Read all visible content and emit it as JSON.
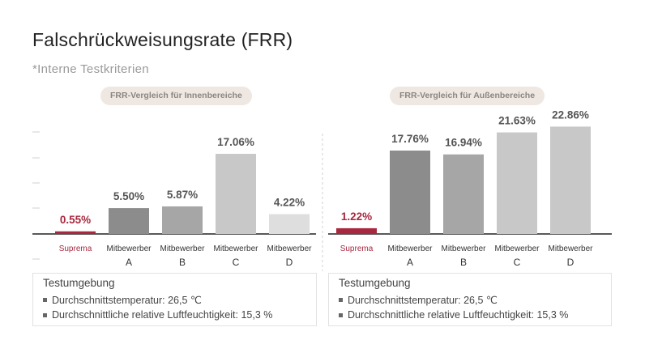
{
  "title": "Falschrückweisungsrate (FRR)",
  "subtitle": "*Interne Testkriterien",
  "colors": {
    "highlight": "#a8283f",
    "dark_gray": "#8c8c8c",
    "mid_gray": "#a6a6a6",
    "light_gray": "#c8c8c8",
    "lighter_gray": "#dedede",
    "value_label": "#555555"
  },
  "chart_data": [
    {
      "type": "bar",
      "title": "FRR-Vergleich für Innenbereiche",
      "categories": [
        "Suprema",
        "Mitbewerber A",
        "Mitbewerber B",
        "Mitbewerber C",
        "Mitbewerber D"
      ],
      "category_lines": [
        [
          "Suprema",
          ""
        ],
        [
          "Mitbewerber",
          "A"
        ],
        [
          "Mitbewerber",
          "B"
        ],
        [
          "Mitbewerber",
          "C"
        ],
        [
          "Mitbewerber",
          "D"
        ]
      ],
      "values": [
        0.55,
        5.5,
        5.87,
        17.06,
        4.22
      ],
      "value_labels": [
        "0.55%",
        "5.50%",
        "5.87%",
        "17.06%",
        "4.22%"
      ],
      "ylim": [
        0,
        25
      ],
      "highlight_index": 0
    },
    {
      "type": "bar",
      "title": "FRR-Vergleich für Außenbereiche",
      "categories": [
        "Suprema",
        "Mitbewerber A",
        "Mitbewerber B",
        "Mitbewerber C",
        "Mitbewerber D"
      ],
      "category_lines": [
        [
          "Suprema",
          ""
        ],
        [
          "Mitbewerber",
          "A"
        ],
        [
          "Mitbewerber",
          "B"
        ],
        [
          "Mitbewerber",
          "C"
        ],
        [
          "Mitbewerber",
          "D"
        ]
      ],
      "values": [
        1.22,
        17.76,
        16.94,
        21.63,
        22.86
      ],
      "value_labels": [
        "1.22%",
        "17.76%",
        "16.94%",
        "21.63%",
        "22.86%"
      ],
      "ylim": [
        0,
        25
      ],
      "highlight_index": 0
    }
  ],
  "environment": {
    "indoor": {
      "title": "Testumgebung",
      "temperature": "Durchschnittstemperatur: 26,5 ℃",
      "humidity": "Durchschnittliche relative Luftfeuchtigkeit: 15,3 %"
    },
    "outdoor": {
      "title": "Testumgebung",
      "temperature": "Durchschnittstemperatur: 26,5 ℃",
      "humidity": "Durchschnittliche relative Luftfeuchtigkeit: 15,3 %"
    }
  }
}
